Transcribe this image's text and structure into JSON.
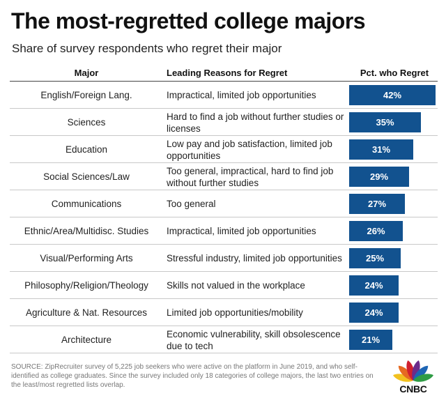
{
  "title": "The most-regretted college majors",
  "subtitle": "Share of survey respondents who regret their major",
  "headers": {
    "major": "Major",
    "reason": "Leading Reasons for Regret",
    "pct": "Pct. who Regret"
  },
  "rows": [
    {
      "major": "English/Foreign Lang.",
      "reason": "Impractical, limited job opportunities",
      "label": "42%"
    },
    {
      "major": "Sciences",
      "reason": "Hard to find a job without further studies or licenses",
      "label": "35%"
    },
    {
      "major": "Education",
      "reason": "Low pay and job satisfaction, limited job opportunities",
      "label": "31%"
    },
    {
      "major": "Social Sciences/Law",
      "reason": "Too general, impractical, hard to find job without further studies",
      "label": "29%"
    },
    {
      "major": "Communications",
      "reason": "Too general",
      "label": "27%"
    },
    {
      "major": "Ethnic/Area/Multidisc. Studies",
      "reason": "Impractical, limited job opportunities",
      "label": "26%"
    },
    {
      "major": "Visual/Performing Arts",
      "reason": "Stressful industry, limited job opportunities",
      "label": "25%"
    },
    {
      "major": "Philosophy/Religion/Theology",
      "reason": "Skills not valued in the workplace",
      "label": "24%"
    },
    {
      "major": "Agriculture & Nat. Resources",
      "reason": "Limited job opportunities/mobility",
      "label": "24%"
    },
    {
      "major": "Architecture",
      "reason": "Economic vulnerability, skill obsolescence due to tech",
      "label": "21%"
    }
  ],
  "source": "SOURCE: ZipRecruiter survey of 5,225 job seekers who were active on the platform in June 2019, and who self-identified as college graduates. Since the survey included only 18 categories of college majors, the last two entries on the least/most regretted lists overlap.",
  "logo": {
    "text": "CNBC",
    "colors": [
      "#f2c11f",
      "#e66a22",
      "#d0202f",
      "#6c2b8a",
      "#1e65b4",
      "#2f9c45"
    ]
  },
  "bar_color": "#12528f",
  "chart_data": {
    "type": "bar",
    "orientation": "horizontal",
    "title": "The most-regretted college majors",
    "subtitle": "Share of survey respondents who regret their major",
    "categories": [
      "English/Foreign Lang.",
      "Sciences",
      "Education",
      "Social Sciences/Law",
      "Communications",
      "Ethnic/Area/Multidisc. Studies",
      "Visual/Performing Arts",
      "Philosophy/Religion/Theology",
      "Agriculture & Nat. Resources",
      "Architecture"
    ],
    "values": [
      42,
      35,
      31,
      29,
      27,
      26,
      25,
      24,
      24,
      21
    ],
    "xlabel": "Pct. who Regret",
    "ylabel": "Major",
    "xlim": [
      0,
      44
    ]
  }
}
